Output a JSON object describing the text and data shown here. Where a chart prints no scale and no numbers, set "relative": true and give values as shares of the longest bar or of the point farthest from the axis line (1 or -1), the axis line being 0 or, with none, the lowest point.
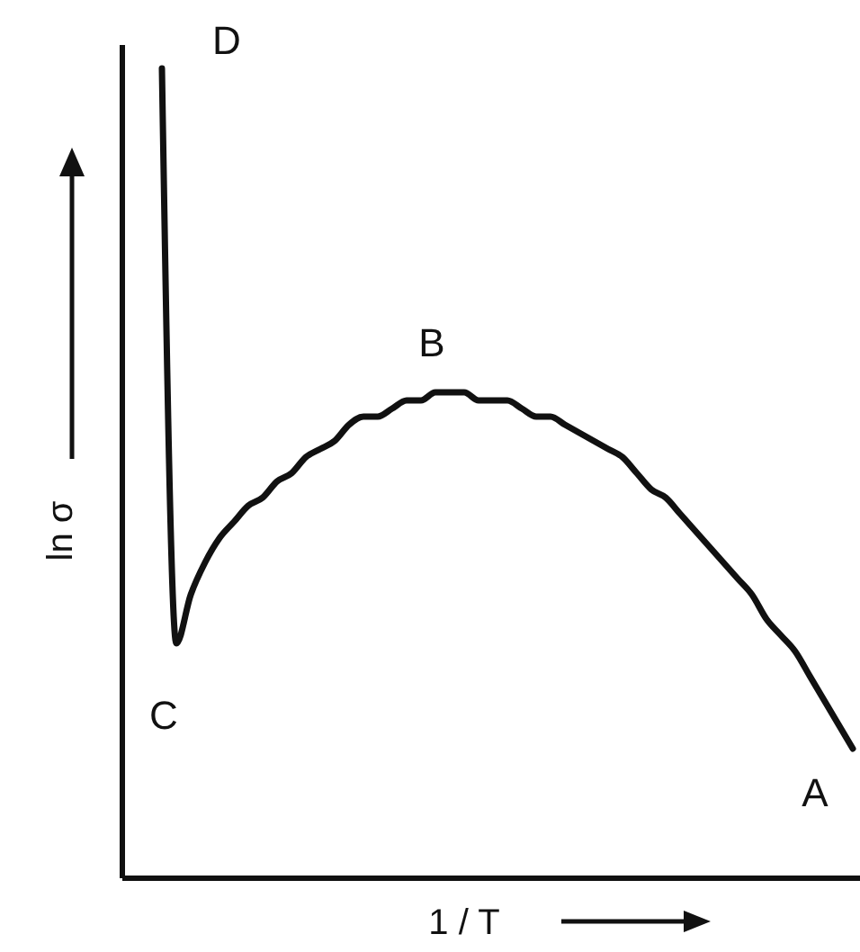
{
  "chart_data": {
    "type": "line",
    "relative": true,
    "xlabel": "1 / T",
    "ylabel": "ln σ",
    "color": "#111111",
    "marker": "none",
    "categories": [
      null,
      null,
      null,
      null,
      null,
      null,
      null,
      null,
      null,
      null,
      null,
      null,
      null,
      null,
      null,
      null,
      null,
      null,
      null,
      null,
      null,
      null,
      null,
      null,
      null,
      null,
      null,
      null,
      null,
      null,
      null,
      null,
      null,
      null,
      null,
      null,
      null,
      null,
      null,
      null,
      null,
      null,
      null,
      null,
      null,
      null,
      null,
      null,
      null
    ],
    "values": [
      1.0,
      0.29,
      0.35,
      0.39,
      0.42,
      0.44,
      0.46,
      0.47,
      0.49,
      0.5,
      0.52,
      0.53,
      0.54,
      0.56,
      0.57,
      0.57,
      0.58,
      0.59,
      0.59,
      0.6,
      0.6,
      0.6,
      0.59,
      0.59,
      0.59,
      0.58,
      0.57,
      0.57,
      0.56,
      0.55,
      0.54,
      0.53,
      0.52,
      0.5,
      0.48,
      0.47,
      0.45,
      0.43,
      0.41,
      0.39,
      0.37,
      0.35,
      0.32,
      0.3,
      0.28,
      0.25,
      0.22,
      0.19,
      0.16
    ],
    "annotations": [
      "D",
      "C",
      "B",
      "A"
    ]
  }
}
